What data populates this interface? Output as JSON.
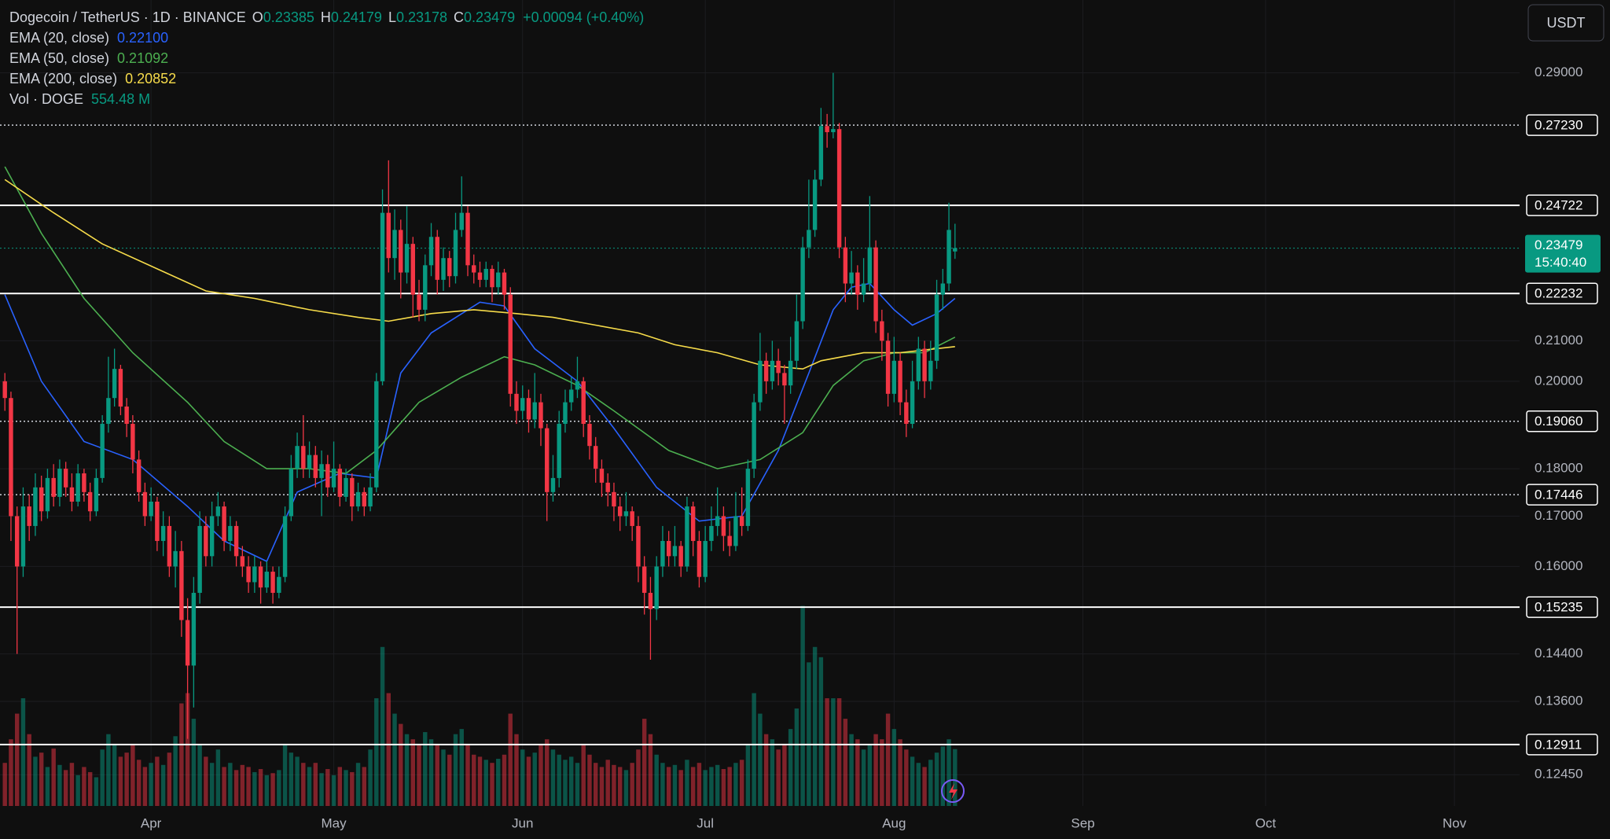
{
  "chart_data": {
    "type": "candlestick",
    "title": "Dogecoin / TetherUS · 1D · BINANCE",
    "ohlc": [
      {
        "label": "O",
        "value": 0.23385
      },
      {
        "label": "H",
        "value": 0.24179
      },
      {
        "label": "L",
        "value": 0.23178
      },
      {
        "label": "C",
        "value": 0.23479
      }
    ],
    "change": "+0.00094 (+0.40%)",
    "currency": "USDT",
    "up_color": "#089981",
    "down_color": "#f23645",
    "log_scale": true,
    "grid": true,
    "ylim": [
      0.1199,
      0.3166
    ],
    "yticks": [
      {
        "value": 0.29,
        "label": "0.29000"
      },
      {
        "value": 0.21,
        "label": "0.21000"
      },
      {
        "value": 0.2,
        "label": "0.20000"
      },
      {
        "value": 0.18,
        "label": "0.18000"
      },
      {
        "value": 0.17,
        "label": "0.17000"
      },
      {
        "value": 0.16,
        "label": "0.16000"
      },
      {
        "value": 0.144,
        "label": "0.14400"
      },
      {
        "value": 0.136,
        "label": "0.13600"
      },
      {
        "value": 0.1245,
        "label": "0.12450"
      }
    ],
    "xlim": [
      -0.8,
      248.7
    ],
    "xticks": [
      {
        "value": 24,
        "label": "Apr"
      },
      {
        "value": 54,
        "label": "May"
      },
      {
        "value": 85,
        "label": "Jun"
      },
      {
        "value": 115,
        "label": "Jul"
      },
      {
        "value": 146,
        "label": "Aug"
      },
      {
        "value": 177,
        "label": "Sep"
      },
      {
        "value": 207,
        "label": "Oct"
      },
      {
        "value": 238,
        "label": "Nov"
      }
    ],
    "levels": [
      {
        "value": 0.2723,
        "label": "0.27230",
        "style": "dotted"
      },
      {
        "value": 0.24722,
        "label": "0.24722",
        "style": "solid"
      },
      {
        "value": 0.22232,
        "label": "0.22232",
        "style": "solid"
      },
      {
        "value": 0.1906,
        "label": "0.19060",
        "style": "dotted"
      },
      {
        "value": 0.17446,
        "label": "0.17446",
        "style": "dotted"
      },
      {
        "value": 0.15235,
        "label": "0.15235",
        "style": "solid"
      },
      {
        "value": 0.12911,
        "label": "0.12911",
        "style": "solid"
      }
    ],
    "current_price": {
      "value": 0.23479,
      "label": "0.23479",
      "countdown": "15:40:40"
    },
    "candles": [
      [
        0.2,
        0.202,
        0.193,
        0.196
      ],
      [
        0.196,
        0.1975,
        0.165,
        0.17
      ],
      [
        0.17,
        0.172,
        0.144,
        0.16
      ],
      [
        0.16,
        0.176,
        0.158,
        0.172
      ],
      [
        0.172,
        0.1745,
        0.165,
        0.168
      ],
      [
        0.168,
        0.179,
        0.166,
        0.176
      ],
      [
        0.176,
        0.1785,
        0.169,
        0.171
      ],
      [
        0.171,
        0.18,
        0.1695,
        0.178
      ],
      [
        0.178,
        0.181,
        0.172,
        0.174
      ],
      [
        0.174,
        0.182,
        0.172,
        0.18
      ],
      [
        0.18,
        0.1815,
        0.174,
        0.176
      ],
      [
        0.176,
        0.179,
        0.171,
        0.173
      ],
      [
        0.173,
        0.181,
        0.172,
        0.179
      ],
      [
        0.179,
        0.18,
        0.173,
        0.175
      ],
      [
        0.175,
        0.177,
        0.169,
        0.171
      ],
      [
        0.171,
        0.18,
        0.17,
        0.178
      ],
      [
        0.178,
        0.192,
        0.177,
        0.19
      ],
      [
        0.19,
        0.206,
        0.188,
        0.196
      ],
      [
        0.196,
        0.208,
        0.194,
        0.203
      ],
      [
        0.203,
        0.204,
        0.192,
        0.194
      ],
      [
        0.194,
        0.196,
        0.187,
        0.19
      ],
      [
        0.19,
        0.192,
        0.179,
        0.182
      ],
      [
        0.182,
        0.184,
        0.173,
        0.175
      ],
      [
        0.175,
        0.177,
        0.168,
        0.17
      ],
      [
        0.17,
        0.176,
        0.169,
        0.173
      ],
      [
        0.173,
        0.174,
        0.163,
        0.165
      ],
      [
        0.165,
        0.171,
        0.162,
        0.168
      ],
      [
        0.168,
        0.17,
        0.158,
        0.16
      ],
      [
        0.16,
        0.167,
        0.156,
        0.163
      ],
      [
        0.163,
        0.165,
        0.147,
        0.15
      ],
      [
        0.15,
        0.154,
        0.13,
        0.142
      ],
      [
        0.142,
        0.158,
        0.135,
        0.155
      ],
      [
        0.155,
        0.171,
        0.153,
        0.168
      ],
      [
        0.168,
        0.17,
        0.16,
        0.162
      ],
      [
        0.162,
        0.173,
        0.16,
        0.17
      ],
      [
        0.17,
        0.175,
        0.168,
        0.172
      ],
      [
        0.172,
        0.173,
        0.163,
        0.165
      ],
      [
        0.165,
        0.17,
        0.163,
        0.168
      ],
      [
        0.168,
        0.169,
        0.16,
        0.162
      ],
      [
        0.162,
        0.164,
        0.158,
        0.16
      ],
      [
        0.16,
        0.162,
        0.155,
        0.157
      ],
      [
        0.157,
        0.162,
        0.155,
        0.16
      ],
      [
        0.16,
        0.161,
        0.153,
        0.156
      ],
      [
        0.156,
        0.161,
        0.155,
        0.159
      ],
      [
        0.159,
        0.16,
        0.153,
        0.155
      ],
      [
        0.155,
        0.16,
        0.154,
        0.158
      ],
      [
        0.158,
        0.172,
        0.157,
        0.17
      ],
      [
        0.17,
        0.183,
        0.169,
        0.18
      ],
      [
        0.18,
        0.188,
        0.178,
        0.185
      ],
      [
        0.185,
        0.192,
        0.178,
        0.18
      ],
      [
        0.18,
        0.186,
        0.178,
        0.183
      ],
      [
        0.183,
        0.185,
        0.176,
        0.178
      ],
      [
        0.178,
        0.184,
        0.17,
        0.181
      ],
      [
        0.181,
        0.183,
        0.174,
        0.176
      ],
      [
        0.176,
        0.186,
        0.175,
        0.18
      ],
      [
        0.18,
        0.181,
        0.172,
        0.174
      ],
      [
        0.174,
        0.18,
        0.173,
        0.178
      ],
      [
        0.178,
        0.179,
        0.169,
        0.172
      ],
      [
        0.172,
        0.177,
        0.171,
        0.175
      ],
      [
        0.175,
        0.176,
        0.17,
        0.172
      ],
      [
        0.172,
        0.179,
        0.171,
        0.176
      ],
      [
        0.176,
        0.202,
        0.175,
        0.2
      ],
      [
        0.2,
        0.252,
        0.199,
        0.245
      ],
      [
        0.245,
        0.261,
        0.228,
        0.232
      ],
      [
        0.232,
        0.246,
        0.226,
        0.24
      ],
      [
        0.24,
        0.243,
        0.221,
        0.228
      ],
      [
        0.228,
        0.247,
        0.225,
        0.236
      ],
      [
        0.236,
        0.238,
        0.216,
        0.222
      ],
      [
        0.222,
        0.226,
        0.215,
        0.218
      ],
      [
        0.218,
        0.233,
        0.215,
        0.23
      ],
      [
        0.23,
        0.242,
        0.227,
        0.238
      ],
      [
        0.238,
        0.24,
        0.222,
        0.226
      ],
      [
        0.226,
        0.235,
        0.223,
        0.232
      ],
      [
        0.232,
        0.234,
        0.224,
        0.227
      ],
      [
        0.227,
        0.245,
        0.225,
        0.24
      ],
      [
        0.24,
        0.256,
        0.238,
        0.245
      ],
      [
        0.245,
        0.247,
        0.227,
        0.23
      ],
      [
        0.23,
        0.233,
        0.225,
        0.228
      ],
      [
        0.228,
        0.231,
        0.224,
        0.226
      ],
      [
        0.226,
        0.231,
        0.224,
        0.229
      ],
      [
        0.229,
        0.23,
        0.22,
        0.224
      ],
      [
        0.224,
        0.231,
        0.222,
        0.228
      ],
      [
        0.228,
        0.229,
        0.218,
        0.222
      ],
      [
        0.222,
        0.224,
        0.194,
        0.197
      ],
      [
        0.197,
        0.2,
        0.19,
        0.193
      ],
      [
        0.193,
        0.199,
        0.191,
        0.196
      ],
      [
        0.196,
        0.198,
        0.188,
        0.191
      ],
      [
        0.191,
        0.202,
        0.189,
        0.195
      ],
      [
        0.195,
        0.197,
        0.185,
        0.189
      ],
      [
        0.189,
        0.19,
        0.169,
        0.175
      ],
      [
        0.175,
        0.183,
        0.173,
        0.178
      ],
      [
        0.178,
        0.193,
        0.176,
        0.19
      ],
      [
        0.19,
        0.198,
        0.188,
        0.195
      ],
      [
        0.195,
        0.201,
        0.193,
        0.198
      ],
      [
        0.198,
        0.206,
        0.196,
        0.2
      ],
      [
        0.2,
        0.201,
        0.187,
        0.19
      ],
      [
        0.19,
        0.192,
        0.182,
        0.185
      ],
      [
        0.185,
        0.187,
        0.177,
        0.18
      ],
      [
        0.18,
        0.182,
        0.174,
        0.177
      ],
      [
        0.177,
        0.179,
        0.172,
        0.175
      ],
      [
        0.175,
        0.177,
        0.169,
        0.172
      ],
      [
        0.172,
        0.174,
        0.167,
        0.17
      ],
      [
        0.17,
        0.175,
        0.168,
        0.171
      ],
      [
        0.171,
        0.172,
        0.165,
        0.168
      ],
      [
        0.168,
        0.17,
        0.157,
        0.16
      ],
      [
        0.16,
        0.162,
        0.151,
        0.155
      ],
      [
        0.155,
        0.158,
        0.143,
        0.152
      ],
      [
        0.152,
        0.162,
        0.15,
        0.16
      ],
      [
        0.16,
        0.168,
        0.158,
        0.165
      ],
      [
        0.165,
        0.167,
        0.16,
        0.162
      ],
      [
        0.162,
        0.168,
        0.16,
        0.164
      ],
      [
        0.164,
        0.165,
        0.158,
        0.16
      ],
      [
        0.16,
        0.174,
        0.159,
        0.172
      ],
      [
        0.172,
        0.173,
        0.162,
        0.165
      ],
      [
        0.165,
        0.167,
        0.156,
        0.158
      ],
      [
        0.158,
        0.168,
        0.157,
        0.165
      ],
      [
        0.165,
        0.172,
        0.163,
        0.168
      ],
      [
        0.168,
        0.176,
        0.166,
        0.17
      ],
      [
        0.17,
        0.172,
        0.163,
        0.166
      ],
      [
        0.166,
        0.169,
        0.162,
        0.164
      ],
      [
        0.164,
        0.175,
        0.163,
        0.17
      ],
      [
        0.17,
        0.176,
        0.166,
        0.168
      ],
      [
        0.168,
        0.182,
        0.167,
        0.18
      ],
      [
        0.18,
        0.197,
        0.178,
        0.195
      ],
      [
        0.195,
        0.212,
        0.193,
        0.205
      ],
      [
        0.205,
        0.207,
        0.197,
        0.2
      ],
      [
        0.2,
        0.21,
        0.198,
        0.205
      ],
      [
        0.205,
        0.208,
        0.199,
        0.202
      ],
      [
        0.202,
        0.204,
        0.19,
        0.199
      ],
      [
        0.199,
        0.211,
        0.197,
        0.205
      ],
      [
        0.205,
        0.222,
        0.203,
        0.215
      ],
      [
        0.215,
        0.238,
        0.213,
        0.235
      ],
      [
        0.235,
        0.255,
        0.232,
        0.24
      ],
      [
        0.24,
        0.258,
        0.238,
        0.255
      ],
      [
        0.255,
        0.278,
        0.253,
        0.272
      ],
      [
        0.272,
        0.276,
        0.265,
        0.27
      ],
      [
        0.27,
        0.29,
        0.268,
        0.271
      ],
      [
        0.271,
        0.273,
        0.232,
        0.235
      ],
      [
        0.235,
        0.238,
        0.22,
        0.225
      ],
      [
        0.225,
        0.234,
        0.222,
        0.228
      ],
      [
        0.228,
        0.23,
        0.218,
        0.222
      ],
      [
        0.222,
        0.232,
        0.22,
        0.225
      ],
      [
        0.225,
        0.25,
        0.223,
        0.235
      ],
      [
        0.235,
        0.237,
        0.212,
        0.215
      ],
      [
        0.215,
        0.218,
        0.205,
        0.21
      ],
      [
        0.21,
        0.212,
        0.194,
        0.197
      ],
      [
        0.197,
        0.211,
        0.195,
        0.205
      ],
      [
        0.205,
        0.207,
        0.192,
        0.195
      ],
      [
        0.195,
        0.198,
        0.187,
        0.19
      ],
      [
        0.19,
        0.205,
        0.189,
        0.2
      ],
      [
        0.2,
        0.211,
        0.198,
        0.208
      ],
      [
        0.208,
        0.21,
        0.196,
        0.2
      ],
      [
        0.2,
        0.21,
        0.198,
        0.205
      ],
      [
        0.205,
        0.226,
        0.203,
        0.222
      ],
      [
        0.222,
        0.229,
        0.218,
        0.225
      ],
      [
        0.225,
        0.248,
        0.223,
        0.24
      ],
      [
        0.23385,
        0.24179,
        0.23178,
        0.23479
      ]
    ],
    "ema": [
      {
        "name": "EMA (20, close)",
        "value_label": "0.22100",
        "color": "#2962ff",
        "x": [
          0,
          6,
          13,
          21,
          30,
          36,
          43,
          48,
          55,
          61,
          65,
          70,
          78,
          82,
          87,
          94,
          100,
          107,
          114,
          121,
          127,
          132,
          136,
          139,
          142,
          146,
          149,
          153,
          156
        ],
        "values": [
          0.222,
          0.2,
          0.186,
          0.182,
          0.172,
          0.165,
          0.161,
          0.175,
          0.179,
          0.178,
          0.202,
          0.212,
          0.22,
          0.219,
          0.208,
          0.2,
          0.189,
          0.176,
          0.169,
          0.17,
          0.184,
          0.202,
          0.218,
          0.224,
          0.225,
          0.218,
          0.214,
          0.217,
          0.221
        ]
      },
      {
        "name": "EMA (50, close)",
        "value_label": "0.21092",
        "color": "#4caf50",
        "x": [
          0,
          6,
          13,
          21,
          30,
          36,
          43,
          50,
          56,
          61,
          68,
          75,
          82,
          87,
          94,
          100,
          109,
          117,
          124,
          131,
          136,
          141,
          146,
          151,
          156
        ],
        "values": [
          0.259,
          0.239,
          0.221,
          0.207,
          0.195,
          0.186,
          0.18,
          0.18,
          0.179,
          0.184,
          0.195,
          0.201,
          0.206,
          0.204,
          0.199,
          0.193,
          0.184,
          0.18,
          0.182,
          0.188,
          0.199,
          0.205,
          0.207,
          0.207,
          0.21092
        ]
      },
      {
        "name": "EMA (200, close)",
        "value_label": "0.20852",
        "color": "#f7dc4a",
        "x": [
          0,
          8,
          16,
          25,
          33,
          41,
          50,
          58,
          63,
          70,
          77,
          84,
          90,
          97,
          104,
          110,
          117,
          124,
          131,
          134,
          141,
          147,
          156
        ],
        "values": [
          0.255,
          0.245,
          0.236,
          0.229,
          0.223,
          0.221,
          0.218,
          0.216,
          0.215,
          0.217,
          0.218,
          0.217,
          0.216,
          0.214,
          0.212,
          0.209,
          0.207,
          0.204,
          0.203,
          0.205,
          0.207,
          0.207,
          0.20852
        ]
      }
    ],
    "volume": {
      "name": "Vol · DOGE",
      "value_label": "554.48 M",
      "vlim": [
        0,
        2100
      ],
      "values": [
        420,
        650,
        900,
        1050,
        700,
        480,
        520,
        380,
        560,
        400,
        350,
        420,
        300,
        380,
        330,
        280,
        550,
        700,
        600,
        480,
        520,
        600,
        450,
        380,
        420,
        480,
        400,
        520,
        680,
        1000,
        1100,
        850,
        600,
        480,
        420,
        550,
        380,
        420,
        350,
        400,
        380,
        330,
        360,
        300,
        320,
        350,
        600,
        520,
        480,
        420,
        380,
        420,
        320,
        360,
        300,
        380,
        350,
        330,
        420,
        380,
        550,
        1050,
        1550,
        1100,
        900,
        800,
        700,
        650,
        600,
        720,
        650,
        600,
        550,
        500,
        700,
        750,
        600,
        500,
        480,
        450,
        420,
        460,
        500,
        900,
        700,
        550,
        480,
        520,
        600,
        650,
        550,
        500,
        450,
        480,
        420,
        600,
        500,
        420,
        380,
        450,
        400,
        380,
        350,
        420,
        550,
        850,
        700,
        500,
        420,
        380,
        400,
        350,
        450,
        380,
        420,
        350,
        380,
        400,
        360,
        380,
        420,
        450,
        600,
        1100,
        900,
        700,
        650,
        550,
        600,
        750,
        950,
        1950,
        1400,
        1550,
        1450,
        1050,
        1050,
        1050,
        850,
        700,
        650,
        550,
        600,
        700,
        650,
        900,
        750,
        650,
        550,
        480,
        420,
        380,
        450,
        520,
        580,
        650,
        554.48
      ]
    }
  }
}
